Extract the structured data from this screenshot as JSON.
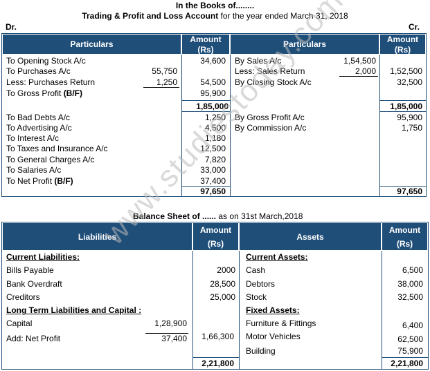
{
  "title_line1": "In the Books of........",
  "title_line2_bold": "Trading & Profit and Loss Account",
  "title_line2_rest": " for the year ended March 31, 2018",
  "dr": "Dr.",
  "cr": "Cr.",
  "headers": {
    "particulars": "Particulars",
    "amount": "Amount",
    "rs": "(Rs)",
    "liabilities": "Liabilities",
    "assets": "Assets"
  },
  "tpl_debit": [
    {
      "label": "To Opening Stock A/c",
      "sub": "",
      "amt": "34,600"
    },
    {
      "label": "To Purchases A/c",
      "sub": "55,750",
      "amt": ""
    },
    {
      "label": "Less: Purchases Return",
      "sub": "1,250",
      "amt": "54,500"
    },
    {
      "label": "To Gross Profit ",
      "bold": "(B/F)",
      "sub": "",
      "amt": "95,900"
    }
  ],
  "tpl_credit": [
    {
      "label": "By Sales A/c",
      "sub": "1,54,500",
      "amt": ""
    },
    {
      "label": "Less: Sales Return",
      "sub": "2,000",
      "amt": "1,52,500"
    },
    {
      "label": "By Closing Stock A/c",
      "sub": "",
      "amt": "32,500"
    }
  ],
  "trading_total_dr": "1,85,000",
  "trading_total_cr": "1,85,000",
  "pl_debit": [
    {
      "label": "To Bad Debts A/c",
      "amt": "1,250"
    },
    {
      "label": "To Advertising A/c",
      "amt": "4,500"
    },
    {
      "label": "To Interest A/c",
      "amt": "1,180"
    },
    {
      "label": "To Taxes and Insurance A/c",
      "amt": "12,500"
    },
    {
      "label": "To General Charges A/c",
      "amt": "7,820"
    },
    {
      "label": "To Salaries A/c",
      "amt": "33,000"
    },
    {
      "label": "To Net Profit ",
      "bold": "(B/F)",
      "amt": "37,400"
    }
  ],
  "pl_credit": [
    {
      "label": "By Gross Profit A/c",
      "amt": "95,900"
    },
    {
      "label": "By Commission A/c",
      "amt": "1,750"
    }
  ],
  "pl_total_dr": "97,650",
  "pl_total_cr": "97,650",
  "bs_title_bold": "Balance Sheet of ......",
  "bs_title_rest": " as on 31st March,2018",
  "bs_liab": [
    {
      "label": "Current Liabilities:",
      "heading": true,
      "sub": "",
      "amt": ""
    },
    {
      "label": "Bills Payable",
      "sub": "",
      "amt": "2000"
    },
    {
      "label": "Bank Overdraft",
      "sub": "",
      "amt": "28,500"
    },
    {
      "label": "Creditors",
      "sub": "",
      "amt": "25,000"
    },
    {
      "label": "Long Term Liabilities and Capital :",
      "heading": true,
      "sub": "",
      "amt": ""
    },
    {
      "label": "Capital",
      "sub": "1,28,900",
      "amt": ""
    },
    {
      "label": "Add: Net Profit",
      "sub": "37,400",
      "amt": "1,66,300"
    }
  ],
  "bs_assets": [
    {
      "label": "Current Assets:",
      "heading": true,
      "amt": ""
    },
    {
      "label": "Cash",
      "amt": "6,500"
    },
    {
      "label": "Debtors",
      "amt": "38,000"
    },
    {
      "label": "Stock",
      "amt": "32,500"
    },
    {
      "label": "Fixed Assets:",
      "heading": true,
      "amt": ""
    },
    {
      "label": "Furniture & Fittings",
      "amt": "6,400"
    },
    {
      "label": "Motor Vehicles",
      "amt": "62,500"
    },
    {
      "label": "Building",
      "amt": "75,900"
    }
  ],
  "bs_total_liab": "2,21,800",
  "bs_total_assets": "2,21,800",
  "watermark": "www.studiestoday.com",
  "colors": {
    "header_bg": "#1f4e79",
    "border": "#1f4e79",
    "watermark": "#b9b9b9"
  }
}
